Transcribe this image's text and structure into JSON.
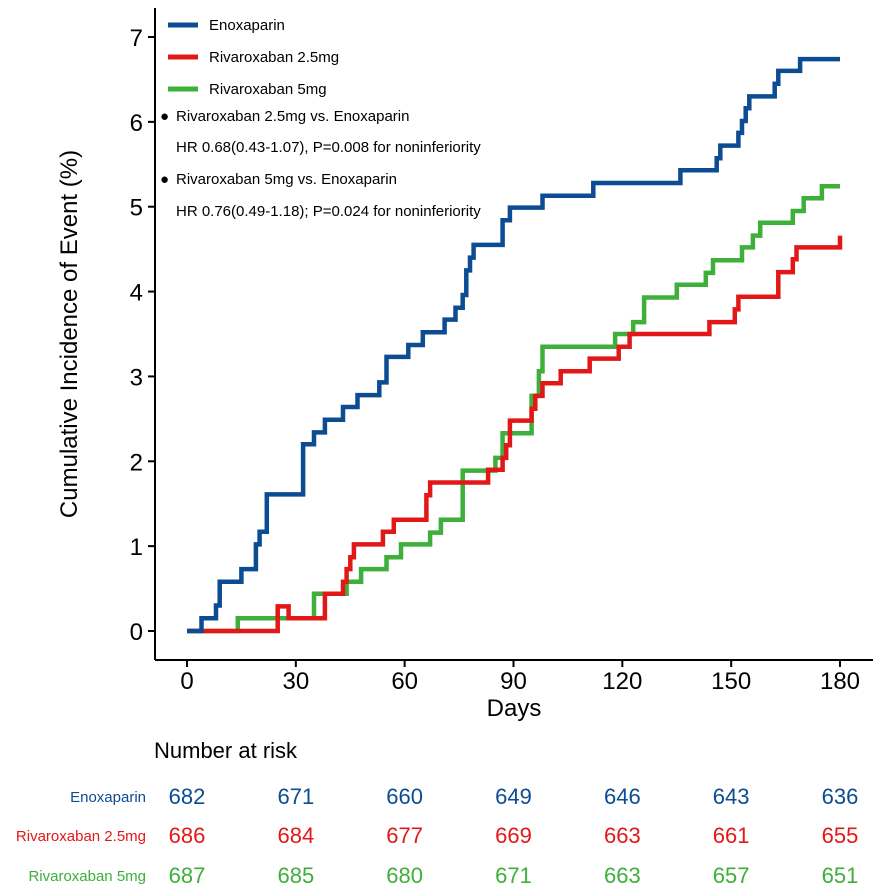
{
  "chart_data": {
    "type": "line",
    "ylabel": "Cumulative Incidence of Event (%)",
    "xlabel": "Days",
    "xlim": [
      0,
      180
    ],
    "ylim": [
      0,
      7
    ],
    "x_ticks": [
      0,
      30,
      60,
      90,
      120,
      150,
      180
    ],
    "y_ticks": [
      0,
      1,
      2,
      3,
      4,
      5,
      6,
      7
    ],
    "grid": false,
    "legend_position": "top-left",
    "series": [
      {
        "name": "Enoxaparin",
        "color": "#0B4C93",
        "points": [
          [
            0,
            0
          ],
          [
            4,
            0
          ],
          [
            4,
            0.15
          ],
          [
            8,
            0.15
          ],
          [
            8,
            0.3
          ],
          [
            9,
            0.3
          ],
          [
            9,
            0.58
          ],
          [
            15,
            0.58
          ],
          [
            15,
            0.73
          ],
          [
            19,
            0.73
          ],
          [
            19,
            1.02
          ],
          [
            20,
            1.02
          ],
          [
            20,
            1.17
          ],
          [
            22,
            1.17
          ],
          [
            22,
            1.61
          ],
          [
            32,
            1.61
          ],
          [
            32,
            2.2
          ],
          [
            35,
            2.2
          ],
          [
            35,
            2.34
          ],
          [
            38,
            2.34
          ],
          [
            38,
            2.49
          ],
          [
            43,
            2.49
          ],
          [
            43,
            2.64
          ],
          [
            47,
            2.64
          ],
          [
            47,
            2.78
          ],
          [
            53,
            2.78
          ],
          [
            53,
            2.93
          ],
          [
            55,
            2.93
          ],
          [
            55,
            3.23
          ],
          [
            61,
            3.23
          ],
          [
            61,
            3.37
          ],
          [
            65,
            3.37
          ],
          [
            65,
            3.52
          ],
          [
            71,
            3.52
          ],
          [
            71,
            3.67
          ],
          [
            74,
            3.67
          ],
          [
            74,
            3.81
          ],
          [
            76,
            3.81
          ],
          [
            76,
            3.96
          ],
          [
            77,
            3.96
          ],
          [
            77,
            4.25
          ],
          [
            78,
            4.25
          ],
          [
            78,
            4.4
          ],
          [
            79,
            4.4
          ],
          [
            79,
            4.55
          ],
          [
            87,
            4.55
          ],
          [
            87,
            4.84
          ],
          [
            89,
            4.84
          ],
          [
            89,
            4.99
          ],
          [
            98,
            4.99
          ],
          [
            98,
            5.13
          ],
          [
            112,
            5.13
          ],
          [
            112,
            5.28
          ],
          [
            136,
            5.28
          ],
          [
            136,
            5.43
          ],
          [
            146,
            5.43
          ],
          [
            146,
            5.57
          ],
          [
            147,
            5.57
          ],
          [
            147,
            5.72
          ],
          [
            152,
            5.72
          ],
          [
            152,
            5.87
          ],
          [
            153,
            5.87
          ],
          [
            153,
            6.01
          ],
          [
            154,
            6.01
          ],
          [
            154,
            6.16
          ],
          [
            155,
            6.16
          ],
          [
            155,
            6.3
          ],
          [
            162,
            6.3
          ],
          [
            162,
            6.45
          ],
          [
            163,
            6.45
          ],
          [
            163,
            6.6
          ],
          [
            169,
            6.6
          ],
          [
            169,
            6.74
          ],
          [
            180,
            6.74
          ]
        ]
      },
      {
        "name": "Rivaroxaban 2.5mg",
        "color": "#E21818",
        "points": [
          [
            0,
            0
          ],
          [
            25,
            0
          ],
          [
            25,
            0.29
          ],
          [
            28,
            0.29
          ],
          [
            28,
            0.15
          ],
          [
            38,
            0.15
          ],
          [
            38,
            0.44
          ],
          [
            43,
            0.44
          ],
          [
            43,
            0.58
          ],
          [
            44,
            0.58
          ],
          [
            44,
            0.73
          ],
          [
            45,
            0.73
          ],
          [
            45,
            0.87
          ],
          [
            46,
            0.87
          ],
          [
            46,
            1.02
          ],
          [
            54,
            1.02
          ],
          [
            54,
            1.17
          ],
          [
            57,
            1.17
          ],
          [
            57,
            1.31
          ],
          [
            66,
            1.31
          ],
          [
            66,
            1.6
          ],
          [
            67,
            1.6
          ],
          [
            67,
            1.75
          ],
          [
            83,
            1.75
          ],
          [
            83,
            1.9
          ],
          [
            87,
            1.9
          ],
          [
            87,
            2.04
          ],
          [
            88,
            2.04
          ],
          [
            88,
            2.19
          ],
          [
            89,
            2.19
          ],
          [
            89,
            2.48
          ],
          [
            95,
            2.48
          ],
          [
            95,
            2.62
          ],
          [
            96,
            2.62
          ],
          [
            96,
            2.77
          ],
          [
            98,
            2.77
          ],
          [
            98,
            2.92
          ],
          [
            103,
            2.92
          ],
          [
            103,
            3.06
          ],
          [
            111,
            3.06
          ],
          [
            111,
            3.21
          ],
          [
            119,
            3.21
          ],
          [
            119,
            3.35
          ],
          [
            122,
            3.35
          ],
          [
            122,
            3.5
          ],
          [
            144,
            3.5
          ],
          [
            144,
            3.64
          ],
          [
            151,
            3.64
          ],
          [
            151,
            3.79
          ],
          [
            152,
            3.79
          ],
          [
            152,
            3.94
          ],
          [
            163,
            3.94
          ],
          [
            163,
            4.23
          ],
          [
            167,
            4.23
          ],
          [
            167,
            4.38
          ],
          [
            168,
            4.38
          ],
          [
            168,
            4.52
          ],
          [
            180,
            4.52
          ],
          [
            180,
            4.66
          ]
        ]
      },
      {
        "name": "Rivaroxaban 5mg",
        "color": "#3DAF3A",
        "points": [
          [
            0,
            0
          ],
          [
            14,
            0
          ],
          [
            14,
            0.15
          ],
          [
            35,
            0.15
          ],
          [
            35,
            0.44
          ],
          [
            44,
            0.44
          ],
          [
            44,
            0.58
          ],
          [
            48,
            0.58
          ],
          [
            48,
            0.73
          ],
          [
            55,
            0.73
          ],
          [
            55,
            0.87
          ],
          [
            59,
            0.87
          ],
          [
            59,
            1.02
          ],
          [
            67,
            1.02
          ],
          [
            67,
            1.16
          ],
          [
            70,
            1.16
          ],
          [
            70,
            1.31
          ],
          [
            76,
            1.31
          ],
          [
            76,
            1.89
          ],
          [
            85,
            1.89
          ],
          [
            85,
            2.04
          ],
          [
            87,
            2.04
          ],
          [
            87,
            2.33
          ],
          [
            95,
            2.33
          ],
          [
            95,
            2.77
          ],
          [
            97,
            2.77
          ],
          [
            97,
            3.06
          ],
          [
            98,
            3.06
          ],
          [
            98,
            3.35
          ],
          [
            118,
            3.35
          ],
          [
            118,
            3.5
          ],
          [
            123,
            3.5
          ],
          [
            123,
            3.64
          ],
          [
            126,
            3.64
          ],
          [
            126,
            3.93
          ],
          [
            135,
            3.93
          ],
          [
            135,
            4.08
          ],
          [
            143,
            4.08
          ],
          [
            143,
            4.22
          ],
          [
            145,
            4.22
          ],
          [
            145,
            4.37
          ],
          [
            153,
            4.37
          ],
          [
            153,
            4.52
          ],
          [
            156,
            4.52
          ],
          [
            156,
            4.66
          ],
          [
            158,
            4.66
          ],
          [
            158,
            4.81
          ],
          [
            167,
            4.81
          ],
          [
            167,
            4.95
          ],
          [
            170,
            4.95
          ],
          [
            170,
            5.1
          ],
          [
            175,
            5.1
          ],
          [
            175,
            5.24
          ],
          [
            180,
            5.24
          ]
        ]
      }
    ]
  },
  "legend": [
    {
      "label": "Enoxaparin",
      "color": "#0B4C93"
    },
    {
      "label": "Rivaroxaban 2.5mg",
      "color": "#E21818"
    },
    {
      "label": "Rivaroxaban 5mg",
      "color": "#3DAF3A"
    }
  ],
  "annotations": {
    "bullet": "●",
    "comparison1": "Rivaroxaban 2.5mg vs. Enoxaparin",
    "hr1": "HR 0.68(0.43-1.07), P=0.008 for noninferiority",
    "comparison2": "Rivaroxaban 5mg vs. Enoxaparin",
    "hr2": "HR 0.76(0.49-1.18); P=0.024 for noninferiority"
  },
  "risk_table": {
    "title": "Number at risk",
    "rows": [
      {
        "label": "Enoxaparin",
        "color": "#0B4C93",
        "values": [
          682,
          671,
          660,
          649,
          646,
          643,
          636
        ]
      },
      {
        "label": "Rivaroxaban 2.5mg",
        "color": "#E21818",
        "values": [
          686,
          684,
          677,
          669,
          663,
          661,
          655
        ]
      },
      {
        "label": "Rivaroxaban 5mg",
        "color": "#3DAF3A",
        "values": [
          687,
          685,
          680,
          671,
          663,
          657,
          651
        ]
      }
    ]
  }
}
